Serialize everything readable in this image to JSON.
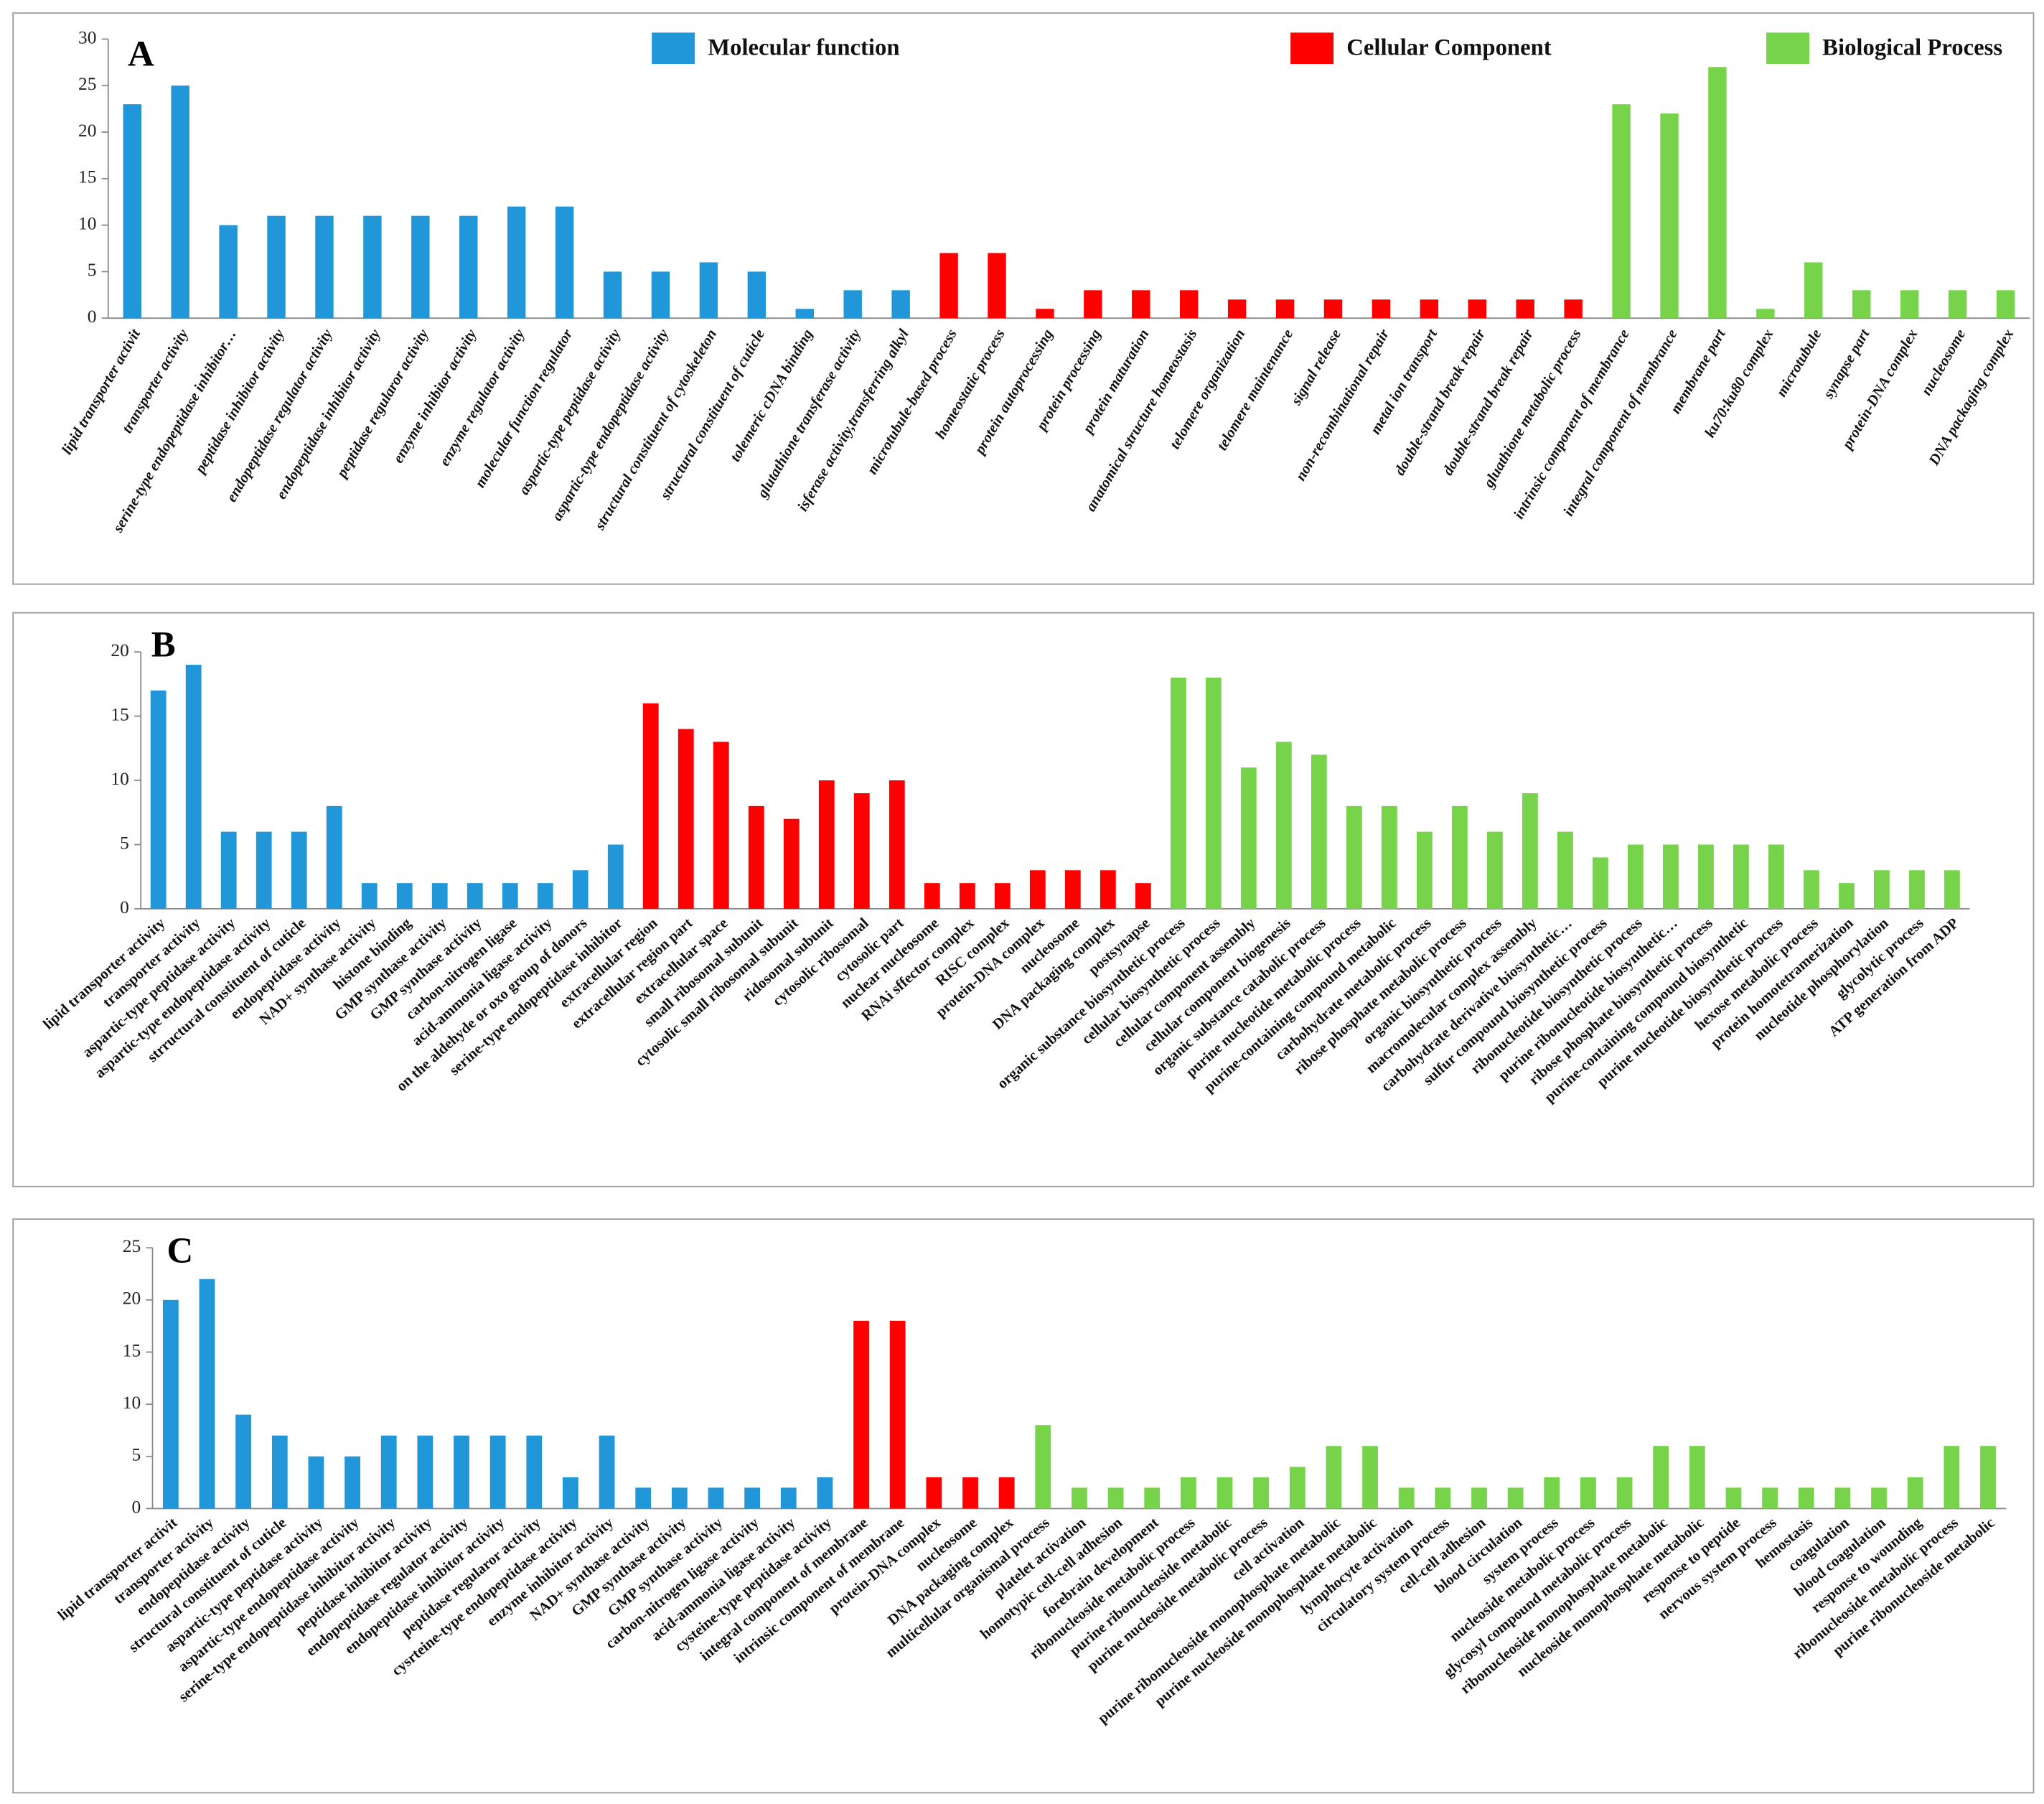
{
  "chart_data": [
    {
      "type": "bar",
      "label": "A",
      "ylim": [
        0,
        30
      ],
      "yticks": [
        0,
        5,
        10,
        15,
        20,
        25,
        30
      ],
      "legend": [
        {
          "name": "Molecular function",
          "color": "#2196d8"
        },
        {
          "name": "Cellular Component",
          "color": "#ff0000"
        },
        {
          "name": "Biological Process",
          "color": "#77d44a"
        }
      ],
      "categories": [
        "lipid transporter activit",
        "transporter activity",
        "serine-type endopeptidase inhibitor…",
        "peptidase inhibitor activity",
        "endopeptidase regulator activity",
        "endopeptidase inhibitor activity",
        "peptidase regularor activity",
        "enzyme inhibitor activity",
        "enzyme regulator activity",
        "molecular function regulator",
        "aspartic-type peptidase activity",
        "aspartic-type endopeptidase activity",
        "structural constituent of cytoskeleton",
        "structural constituent of cuticle",
        "tolemeric cDNA binding",
        "glutathione transferase activity",
        "isferase activity,transferring alkyl",
        "microtubule-based process",
        "homeostatic process",
        "protein autoprocessing",
        "protein processing",
        "protein maturation",
        "anatomical structure homeostasis",
        "telomere organization",
        "telomere maintenance",
        "signal release",
        "non-recombinational repair",
        "metal ion transport",
        "double-strand break repair",
        "double-strand break repair",
        "gluathione metabolic process",
        "intrinsic component of membrance",
        "integral component of membrance",
        "membrane part",
        "ku70:ku80 complex",
        "microtubule",
        "synapse part",
        "protein-DNA complex",
        "nucleosome",
        "DNA packaging complex"
      ],
      "values": [
        23,
        25,
        10,
        11,
        11,
        11,
        11,
        11,
        12,
        12,
        5,
        5,
        6,
        5,
        1,
        3,
        3,
        7,
        7,
        1,
        3,
        3,
        3,
        2,
        2,
        2,
        2,
        2,
        2,
        2,
        2,
        23,
        22,
        27,
        1,
        6,
        3,
        3,
        3,
        3
      ],
      "colors": [
        "#2196d8",
        "#2196d8",
        "#2196d8",
        "#2196d8",
        "#2196d8",
        "#2196d8",
        "#2196d8",
        "#2196d8",
        "#2196d8",
        "#2196d8",
        "#2196d8",
        "#2196d8",
        "#2196d8",
        "#2196d8",
        "#2196d8",
        "#2196d8",
        "#2196d8",
        "#ff0000",
        "#ff0000",
        "#ff0000",
        "#ff0000",
        "#ff0000",
        "#ff0000",
        "#ff0000",
        "#ff0000",
        "#ff0000",
        "#ff0000",
        "#ff0000",
        "#ff0000",
        "#ff0000",
        "#ff0000",
        "#77d44a",
        "#77d44a",
        "#77d44a",
        "#77d44a",
        "#77d44a",
        "#77d44a",
        "#77d44a",
        "#77d44a",
        "#77d44a"
      ]
    },
    {
      "type": "bar",
      "label": "B",
      "ylim": [
        0,
        20
      ],
      "yticks": [
        0,
        5,
        10,
        15,
        20
      ],
      "categories": [
        "lipid transporter activity",
        "transporter activity",
        "aspartic-type peptidase activity",
        "aspartic-type endopeptidase activity",
        "strructural constituent of cuticle",
        "endopeptidase activity",
        "NAD+ synthase activity",
        "histone binding",
        "GMP synthase activity",
        "GMP synthase activity",
        "carbon-nitrogen ligase",
        "acid-ammonia ligase activity",
        "on the aldehyde or  oxo group of donors",
        "serine-type endopeptidase inhibitor",
        "extracellular region",
        "extracellular region part",
        "extracellular space",
        "small ribosomal subunit",
        "cytosolic small ribosomal subunit",
        "ridosomal subunit",
        "cytosolic ribosomal",
        "cytosolic part",
        "nuclear nucleosome",
        "RNAi sffector complex",
        "RISC complex",
        "protein-DNA complex",
        "nucleosome",
        "DNA packaging complex",
        "postsynapse",
        "organic substance biosynthetic process",
        "cellular biosynthetic process",
        "cellular component assembly",
        "cellular component biogenesis",
        "organic substance catabolic process",
        "purine nucleotide metabolic process",
        "purine-containing compound  metabolic",
        "carbohydrate metabolic process",
        "ribose phosphate metabolic process",
        "organic biosynthetic process",
        "macromolecular complex assembly",
        "carbohydrate derivative biosynthetic…",
        "sulfur compound biosynthetic process",
        "ribonucleotide biosynthetic process",
        "purine ribonucleotide biosynthetic…",
        "ribose phosphate biosynthetic  process",
        "purine-containing compound  biosynthetic",
        "purine nucleotide biosynthetic process",
        "hexose metabolic process",
        "protein homotetramerization",
        "nucleotide phosphorylation",
        "glycolytic process",
        "ATP generation from ADP"
      ],
      "values": [
        17,
        19,
        6,
        6,
        6,
        8,
        2,
        2,
        2,
        2,
        2,
        2,
        3,
        5,
        16,
        14,
        13,
        8,
        7,
        10,
        9,
        10,
        2,
        2,
        2,
        3,
        3,
        3,
        2,
        18,
        18,
        11,
        13,
        12,
        8,
        8,
        6,
        8,
        6,
        9,
        6,
        4,
        5,
        5,
        5,
        5,
        5,
        3,
        2,
        3,
        3,
        3
      ],
      "colors": [
        "#2196d8",
        "#2196d8",
        "#2196d8",
        "#2196d8",
        "#2196d8",
        "#2196d8",
        "#2196d8",
        "#2196d8",
        "#2196d8",
        "#2196d8",
        "#2196d8",
        "#2196d8",
        "#2196d8",
        "#2196d8",
        "#ff0000",
        "#ff0000",
        "#ff0000",
        "#ff0000",
        "#ff0000",
        "#ff0000",
        "#ff0000",
        "#ff0000",
        "#ff0000",
        "#ff0000",
        "#ff0000",
        "#ff0000",
        "#ff0000",
        "#ff0000",
        "#ff0000",
        "#77d44a",
        "#77d44a",
        "#77d44a",
        "#77d44a",
        "#77d44a",
        "#77d44a",
        "#77d44a",
        "#77d44a",
        "#77d44a",
        "#77d44a",
        "#77d44a",
        "#77d44a",
        "#77d44a",
        "#77d44a",
        "#77d44a",
        "#77d44a",
        "#77d44a",
        "#77d44a",
        "#77d44a",
        "#77d44a",
        "#77d44a",
        "#77d44a",
        "#77d44a"
      ]
    },
    {
      "type": "bar",
      "label": "C",
      "ylim": [
        0,
        25
      ],
      "yticks": [
        0,
        5,
        10,
        15,
        20,
        25
      ],
      "categories": [
        "lipid transporter activit",
        "transporter activity",
        "endopeptidase activity",
        "structural constituent of cuticle",
        "aspartic-type peptidase activity",
        "aspartic-type endopeptidase activity",
        "serine-type endopeptidase inhibitor activity",
        "peptidase inhibitor activity",
        "endopeptidase regulator activity",
        "endopeptidase inhibitor activity",
        "peptidase regularor activity",
        "cysrteine-type endopeptidase activity",
        "enzyme inhibitor activity",
        "NAD+ synthase activity",
        "GMP synthase activity",
        "GMP synthase activity",
        "carbon-nitrogen ligase activity",
        "acid-ammonia ligase activity",
        "cysteine-type peptidase activity",
        "integral component of membrane",
        "intrinsic component of membrane",
        "protein-DNA complex",
        "nucleosome",
        "DNA packaging complex",
        "multicellular organismal process",
        "platelet activation",
        "homotypic cell-cell adhesion",
        "forebrain development",
        "ribonucleoside metabolic process",
        "purine ribonucleoside metabolic",
        "purine nucleoside metabolic process",
        "cell activation",
        "purine ribonucleoside monophosphate metabolic",
        "purine  nucleoside monophosphate metabolic",
        "lymphocyte activation",
        "circulatory system process",
        "cell-cell adhesion",
        "blood circulation",
        "system process",
        "nucleoside metabolic process",
        "glycosyl compound metabolic process",
        "ribonucleoside monophosphate metabolic",
        "nucleoside monophosphate metabolic",
        "response to peptide",
        "nervous system process",
        "hemostasis",
        "coagulation",
        "blood coagulation",
        "response to wounding",
        "ribonucleoside metabolic process",
        "purine ribonucleoside metabolic"
      ],
      "values": [
        20,
        22,
        9,
        7,
        5,
        5,
        7,
        7,
        7,
        7,
        7,
        3,
        7,
        2,
        2,
        2,
        2,
        2,
        3,
        18,
        18,
        3,
        3,
        3,
        8,
        2,
        2,
        2,
        3,
        3,
        3,
        4,
        6,
        6,
        2,
        2,
        2,
        2,
        3,
        3,
        3,
        6,
        6,
        2,
        2,
        2,
        2,
        2,
        3,
        6,
        6
      ],
      "colors": [
        "#2196d8",
        "#2196d8",
        "#2196d8",
        "#2196d8",
        "#2196d8",
        "#2196d8",
        "#2196d8",
        "#2196d8",
        "#2196d8",
        "#2196d8",
        "#2196d8",
        "#2196d8",
        "#2196d8",
        "#2196d8",
        "#2196d8",
        "#2196d8",
        "#2196d8",
        "#2196d8",
        "#2196d8",
        "#ff0000",
        "#ff0000",
        "#ff0000",
        "#ff0000",
        "#ff0000",
        "#77d44a",
        "#77d44a",
        "#77d44a",
        "#77d44a",
        "#77d44a",
        "#77d44a",
        "#77d44a",
        "#77d44a",
        "#77d44a",
        "#77d44a",
        "#77d44a",
        "#77d44a",
        "#77d44a",
        "#77d44a",
        "#77d44a",
        "#77d44a",
        "#77d44a",
        "#77d44a",
        "#77d44a",
        "#77d44a",
        "#77d44a",
        "#77d44a",
        "#77d44a",
        "#77d44a",
        "#77d44a",
        "#77d44a",
        "#77d44a"
      ]
    }
  ]
}
